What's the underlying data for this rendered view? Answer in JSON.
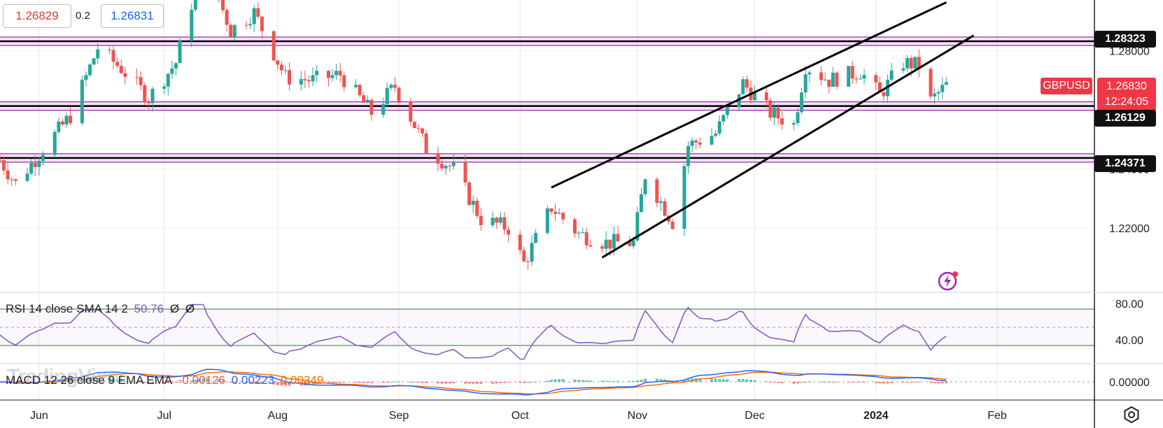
{
  "trade_panel": {
    "sell_price": "1.26829",
    "spread": "0.2",
    "buy_price": "1.26831"
  },
  "symbol": {
    "name": "GBPUSD",
    "current_price": "1.26830",
    "countdown": "12:24:05"
  },
  "indicators": {
    "rsi": {
      "label": "RSI 14 close SMA 14 2",
      "value": "50.76",
      "extra1": "Ø",
      "extra2": "Ø",
      "levels": [
        "80.00",
        "40.00"
      ],
      "color": "#7e57c2"
    },
    "macd": {
      "label": "MACD 12 26 close 9 EMA EMA",
      "hist": "-0.00126",
      "macd": "0.00223",
      "signal": "0.00349",
      "zero_label": "0.00000",
      "macd_color": "#2962ff",
      "signal_color": "#ff6d00"
    }
  },
  "watermark": "TradingView",
  "colors": {
    "up": "#26a69a",
    "down": "#ef5350",
    "zone": "#9c27b0",
    "trendline": "#000000"
  },
  "horizontal_levels": [
    {
      "label": "1.28323",
      "value": 1.28323
    },
    {
      "label": "1.26129",
      "value": 1.26129
    },
    {
      "label": "1.24371",
      "value": 1.24371
    }
  ],
  "chart_data": {
    "type": "candlestick",
    "symbol": "GBPUSD",
    "timeframe": "daily",
    "y_ticks": [
      "1.28000",
      "1.24000",
      "1.22000"
    ],
    "y_tick_values": [
      1.28,
      1.24,
      1.22
    ],
    "ylim": [
      1.1982,
      1.2972
    ],
    "x_tick_labels": [
      "Jun",
      "Jul",
      "Aug",
      "Sep",
      "Oct",
      "Nov",
      "Dec",
      "2024",
      "Feb"
    ],
    "x_tick_dates": [
      "2023-06-01",
      "2023-07-03",
      "2023-08-01",
      "2023-09-01",
      "2023-10-02",
      "2023-11-01",
      "2023-12-01",
      "2024-01-01",
      "2024-02-01"
    ],
    "date_range": [
      "2023-05-22",
      "2024-01-19"
    ],
    "channel_lines": [
      {
        "name": "upper",
        "from": [
          "2023-10-10",
          1.2337
        ],
        "to": [
          "2024-01-19",
          1.2964
        ]
      },
      {
        "name": "lower",
        "from": [
          "2023-10-23",
          1.21
        ],
        "to": [
          "2024-01-26",
          1.2852
        ]
      }
    ],
    "close_path": [
      [
        "2023-05-22",
        1.243
      ],
      [
        "2023-05-26",
        1.235
      ],
      [
        "2023-06-01",
        1.245
      ],
      [
        "2023-06-09",
        1.258
      ],
      [
        "2023-06-16",
        1.281
      ],
      [
        "2023-06-22",
        1.274
      ],
      [
        "2023-06-29",
        1.264
      ],
      [
        "2023-07-06",
        1.276
      ],
      [
        "2023-07-13",
        1.311
      ],
      [
        "2023-07-20",
        1.287
      ],
      [
        "2023-07-26",
        1.293
      ],
      [
        "2023-08-03",
        1.271
      ],
      [
        "2023-08-10",
        1.27
      ],
      [
        "2023-08-17",
        1.272
      ],
      [
        "2023-08-25",
        1.259
      ],
      [
        "2023-08-31",
        1.268
      ],
      [
        "2023-09-08",
        1.247
      ],
      [
        "2023-09-15",
        1.24
      ],
      [
        "2023-09-22",
        1.223
      ],
      [
        "2023-09-29",
        1.22
      ],
      [
        "2023-10-03",
        1.208
      ],
      [
        "2023-10-10",
        1.227
      ],
      [
        "2023-10-17",
        1.218
      ],
      [
        "2023-10-24",
        1.215
      ],
      [
        "2023-10-31",
        1.215
      ],
      [
        "2023-11-03",
        1.238
      ],
      [
        "2023-11-10",
        1.222
      ],
      [
        "2023-11-14",
        1.248
      ],
      [
        "2023-11-21",
        1.252
      ],
      [
        "2023-11-28",
        1.269
      ],
      [
        "2023-12-05",
        1.259
      ],
      [
        "2023-12-11",
        1.255
      ],
      [
        "2023-12-14",
        1.275
      ],
      [
        "2023-12-20",
        1.27
      ],
      [
        "2023-12-28",
        1.273
      ],
      [
        "2024-01-02",
        1.265
      ],
      [
        "2024-01-08",
        1.276
      ],
      [
        "2024-01-12",
        1.275
      ],
      [
        "2024-01-15",
        1.263
      ],
      [
        "2024-01-19",
        1.2683
      ]
    ]
  }
}
